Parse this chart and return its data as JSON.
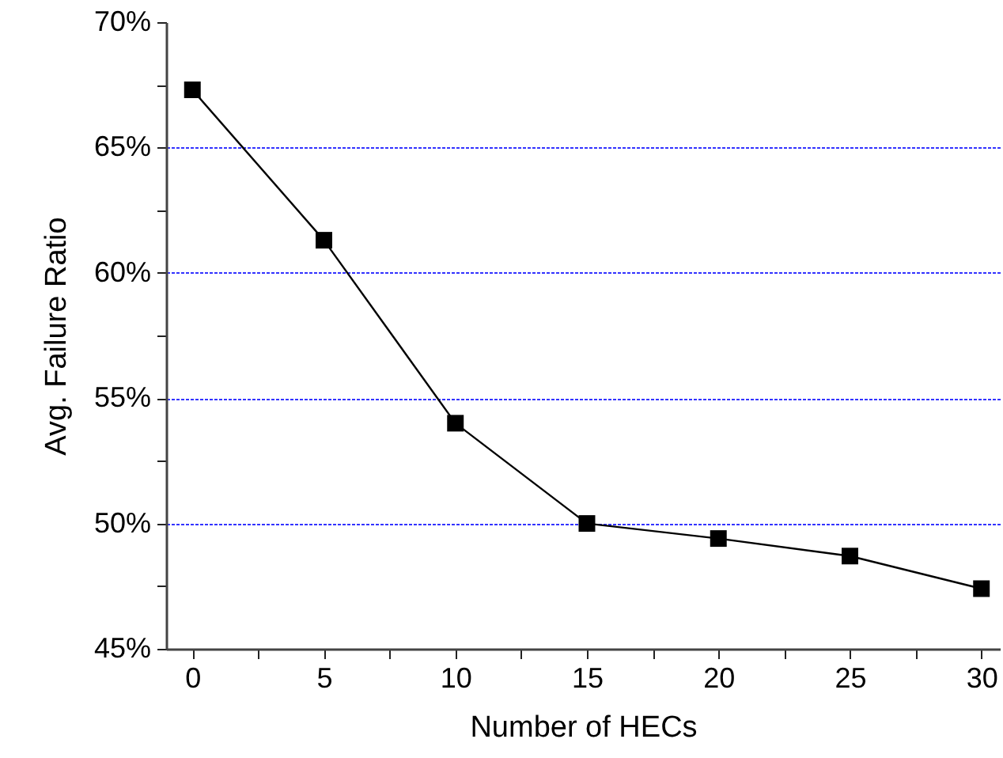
{
  "chart_data": {
    "type": "line",
    "xlabel": "Number of HECs",
    "ylabel": "Avg. Failure Ratio",
    "x": [
      0,
      5,
      10,
      15,
      20,
      25,
      30
    ],
    "series": [
      {
        "color": "#000000",
        "values": [
          67.3,
          61.3,
          54.0,
          50.0,
          49.4,
          48.7,
          47.4
        ]
      }
    ],
    "xlim": [
      -1,
      30.7
    ],
    "xticks": [
      0,
      {
        "value": 2.5,
        "label": null
      },
      5,
      {
        "value": 7.5,
        "label": null
      },
      10,
      {
        "value": 12.5,
        "label": null
      },
      15,
      {
        "value": 17.5,
        "label": null
      },
      20,
      {
        "value": 22.5,
        "label": null
      },
      25,
      {
        "value": 27.5,
        "label": null
      },
      30
    ],
    "ylim": [
      45,
      70
    ],
    "yticks": [
      {
        "value": 45,
        "label": "45%"
      },
      {
        "value": 47.5,
        "label": null
      },
      {
        "value": 50,
        "label": "50%"
      },
      {
        "value": 52.5,
        "label": null
      },
      {
        "value": 55,
        "label": "55%"
      },
      {
        "value": 57.5,
        "label": null
      },
      {
        "value": 60,
        "label": "60%"
      },
      {
        "value": 62.5,
        "label": null
      },
      {
        "value": 65,
        "label": "65%"
      },
      {
        "value": 67.5,
        "label": null
      },
      {
        "value": 70,
        "label": "70%"
      }
    ],
    "grid": "y",
    "marker": "square",
    "line_style": "solid",
    "legend": false
  }
}
